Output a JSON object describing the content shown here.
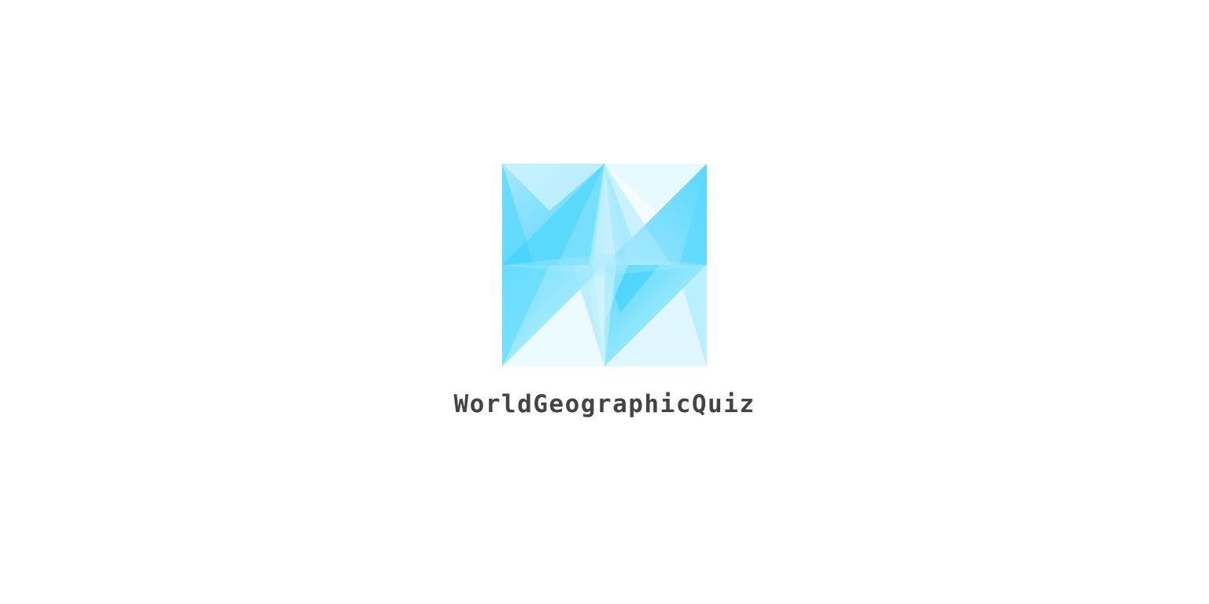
{
  "app": {
    "name": "WorldGeographicQuiz"
  },
  "logo": {
    "icon": "geometric-crystal-logo-icon",
    "colors": {
      "primary": "#3dd2fc",
      "light": "#bff0ff",
      "pale": "#eefbff"
    }
  },
  "colors": {
    "background": "#ffffff",
    "text": "#444444"
  }
}
